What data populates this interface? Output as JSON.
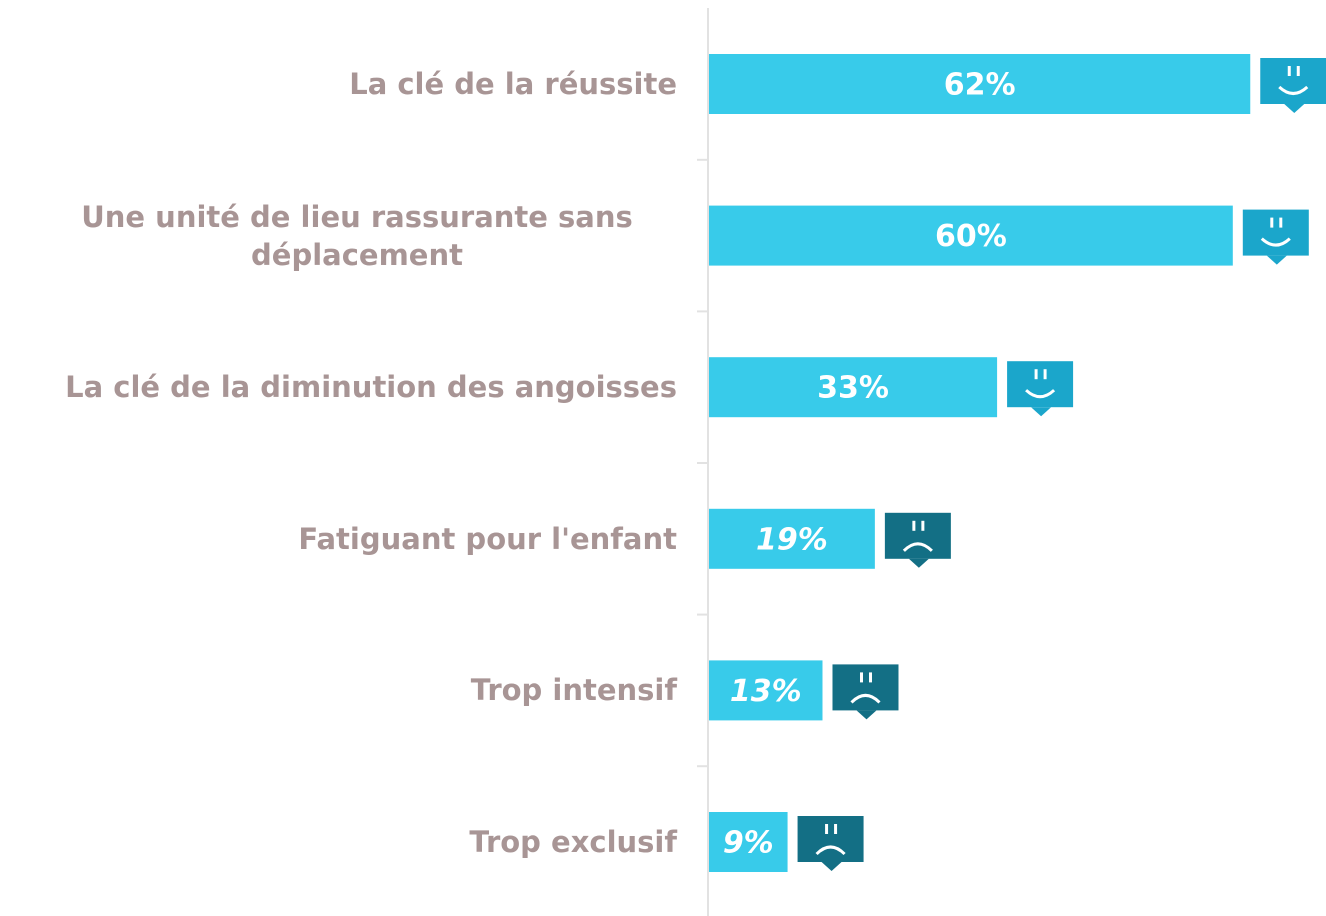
{
  "chart_data": {
    "type": "bar",
    "orientation": "horizontal",
    "categories": [
      "La clé de la réussite",
      "Une unité de lieu rassurante sans déplacement",
      "La clé de la diminution des angoisses",
      "Fatiguant pour l'enfant",
      "Trop intensif",
      "Trop exclusif"
    ],
    "values": [
      62,
      60,
      33,
      19,
      13,
      9
    ],
    "value_labels": [
      "62%",
      "60%",
      "33%",
      "19%",
      "13%",
      "9%"
    ],
    "color": "#38cbea",
    "icons": [
      "smile",
      "smile",
      "smile",
      "frown",
      "frown",
      "frown"
    ],
    "icon_colors": {
      "smile": "#1ba6cb",
      "frown": "#136f85"
    }
  }
}
